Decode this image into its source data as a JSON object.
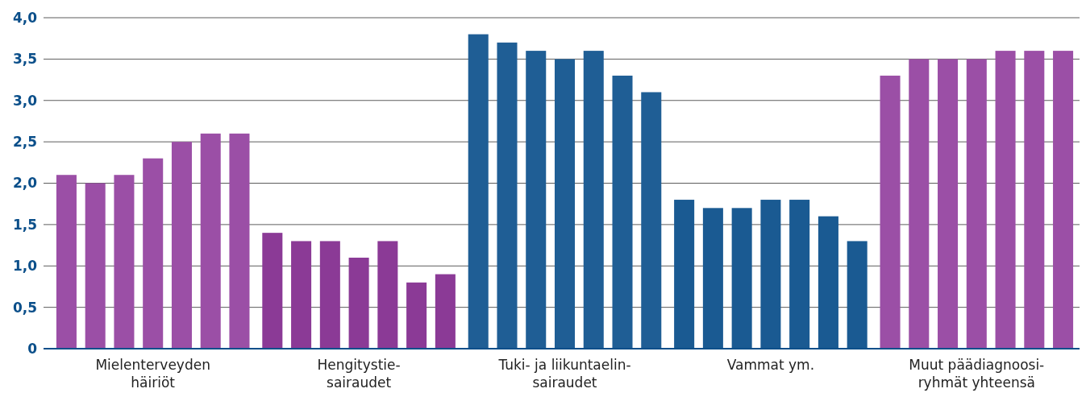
{
  "chart_data": {
    "type": "bar",
    "categories": [
      "Mielenterveyden\nhäiriöt",
      "Hengitystie-\nsairaudet",
      "Tuki- ja liikuntaelin-\nsairaudet",
      "Vammat ym.",
      "Muut päädiagnoosi-\nryhmät yhteensä"
    ],
    "series": [
      {
        "colors": [
          "#9b4fa6",
          "#8b3a96",
          "#1f5e95",
          "#1a5a92",
          "#9b4fa6"
        ],
        "values": [
          2.1,
          1.4,
          3.8,
          1.8,
          3.3
        ]
      },
      {
        "colors": [
          "#9b4fa6",
          "#8b3a96",
          "#1f5e95",
          "#1a5a92",
          "#9b4fa6"
        ],
        "values": [
          2.0,
          1.3,
          3.7,
          1.7,
          3.5
        ]
      },
      {
        "colors": [
          "#9b4fa6",
          "#8b3a96",
          "#1f5e95",
          "#1a5a92",
          "#9b4fa6"
        ],
        "values": [
          2.1,
          1.3,
          3.6,
          1.7,
          3.5
        ]
      },
      {
        "colors": [
          "#9b4fa6",
          "#8b3a96",
          "#1f5e95",
          "#1a5a92",
          "#9b4fa6"
        ],
        "values": [
          2.3,
          1.1,
          3.5,
          1.8,
          3.5
        ]
      },
      {
        "colors": [
          "#9b4fa6",
          "#8b3a96",
          "#1f5e95",
          "#1a5a92",
          "#9b4fa6"
        ],
        "values": [
          2.5,
          1.3,
          3.6,
          1.8,
          3.6
        ]
      },
      {
        "colors": [
          "#9b4fa6",
          "#8b3a96",
          "#1f5e95",
          "#1a5a92",
          "#9b4fa6"
        ],
        "values": [
          2.6,
          0.8,
          3.3,
          1.6,
          3.6
        ]
      },
      {
        "colors": [
          "#9b4fa6",
          "#8b3a96",
          "#1f5e95",
          "#1a5a92",
          "#9b4fa6"
        ],
        "values": [
          2.6,
          0.9,
          3.1,
          1.3,
          3.6
        ]
      }
    ],
    "ylim": [
      0,
      4
    ],
    "yticks": [
      0,
      {
        "value": 0.5,
        "label": "0,5"
      },
      {
        "value": 1,
        "label": "1,0"
      },
      {
        "value": 1.5,
        "label": "1,5"
      },
      {
        "value": 2,
        "label": "2,0"
      },
      {
        "value": 2.5,
        "label": "2,5"
      },
      {
        "value": 3,
        "label": "3,0"
      },
      {
        "value": 3.5,
        "label": "3,5"
      },
      {
        "value": 4,
        "label": "4,0"
      }
    ],
    "grid": "y"
  }
}
